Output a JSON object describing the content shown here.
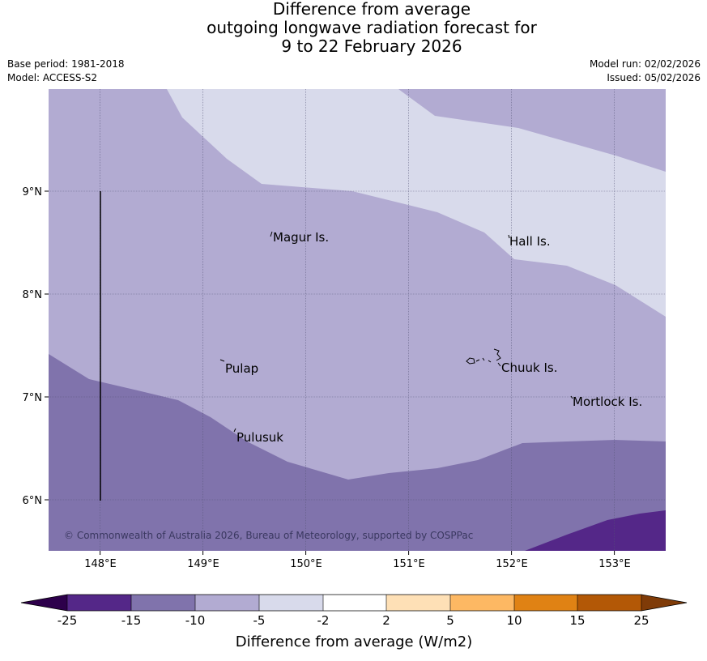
{
  "title": {
    "line1": "Difference from average",
    "line2": "outgoing longwave radiation forecast for",
    "line3": "9 to 22 February 2026"
  },
  "info": {
    "base_period": "Base period: 1981-2018",
    "model": "Model: ACCESS-S2",
    "model_run": "Model run: 02/02/2026",
    "issued": "Issued: 05/02/2026"
  },
  "map": {
    "lon_labels": [
      "148°E",
      "149°E",
      "150°E",
      "151°E",
      "152°E",
      "153°E"
    ],
    "lat_labels": [
      "9°N",
      "8°N",
      "7°N",
      "6°N"
    ],
    "places": {
      "magur": "Magur Is.",
      "hall": "Hall Is.",
      "pulap": "Pulap",
      "chuuk": "Chuuk Is.",
      "pulusuk": "Pulusuk",
      "mortlock": "Mortlock Is."
    },
    "copyright": "© Commonwealth of Australia 2026, Bureau of Meteorology, supported by COSPPac"
  },
  "colorbar": {
    "ticks": [
      "-25",
      "-15",
      "-10",
      "-5",
      "-2",
      "2",
      "5",
      "10",
      "15",
      "25"
    ],
    "colors": [
      "#2d004b",
      "#542788",
      "#8073ac",
      "#b2abd2",
      "#d8daeb",
      "#ffffff",
      "#fee0b6",
      "#fdb863",
      "#e08214",
      "#b35806",
      "#7f3b08"
    ],
    "label": "Difference from average (W/m2)"
  }
}
